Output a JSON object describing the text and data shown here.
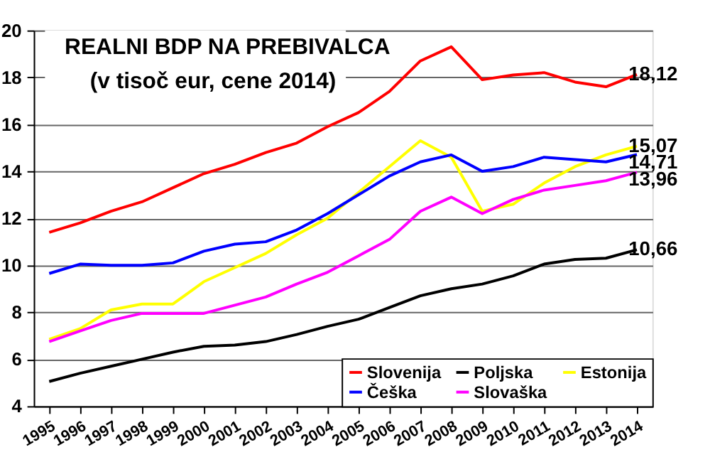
{
  "chart_data": {
    "type": "line",
    "title": "REALNI BDP NA PREBIVALCA",
    "subtitle": "(v tisoč eur, cene 2014)",
    "categories": [
      "1995",
      "1996",
      "1997",
      "1998",
      "1999",
      "2000",
      "2001",
      "2002",
      "2003",
      "2004",
      "2005",
      "2006",
      "2007",
      "2008",
      "2009",
      "2010",
      "2011",
      "2012",
      "2013",
      "2014"
    ],
    "series": [
      {
        "name": "Slovenija",
        "color": "#ff0000",
        "values": [
          11.4,
          11.8,
          12.3,
          12.7,
          13.3,
          13.9,
          14.3,
          14.8,
          15.2,
          15.9,
          16.5,
          17.4,
          18.7,
          19.3,
          17.9,
          18.1,
          18.2,
          17.8,
          17.6,
          18.12
        ],
        "value_labels": [
          null,
          null,
          null,
          null,
          null,
          null,
          null,
          null,
          null,
          null,
          null,
          null,
          null,
          null,
          null,
          null,
          null,
          null,
          null,
          "18,12"
        ]
      },
      {
        "name": "Poljska",
        "color": "#000000",
        "values": [
          5.05,
          5.4,
          5.7,
          6.0,
          6.3,
          6.55,
          6.6,
          6.75,
          7.05,
          7.4,
          7.7,
          8.2,
          8.7,
          9.0,
          9.2,
          9.55,
          10.05,
          10.25,
          10.3,
          10.66
        ],
        "value_labels": [
          null,
          null,
          null,
          null,
          null,
          null,
          null,
          null,
          null,
          null,
          null,
          null,
          null,
          null,
          null,
          null,
          null,
          null,
          null,
          "10,66"
        ]
      },
      {
        "name": "Estonija",
        "color": "#ffff00",
        "values": [
          6.85,
          7.3,
          8.1,
          8.35,
          8.35,
          9.3,
          9.9,
          10.5,
          11.3,
          12.0,
          13.1,
          14.2,
          15.3,
          14.6,
          12.3,
          12.6,
          13.5,
          14.2,
          14.7,
          15.07
        ],
        "value_labels": [
          null,
          null,
          null,
          null,
          null,
          null,
          null,
          null,
          null,
          null,
          null,
          null,
          null,
          null,
          null,
          null,
          null,
          null,
          null,
          "15,07"
        ]
      },
      {
        "name": "Češka",
        "color": "#0000ff",
        "values": [
          9.65,
          10.05,
          10.0,
          10.0,
          10.1,
          10.6,
          10.9,
          11.0,
          11.5,
          12.2,
          13.0,
          13.8,
          14.4,
          14.7,
          14.0,
          14.2,
          14.6,
          14.5,
          14.4,
          14.71
        ],
        "value_labels": [
          null,
          null,
          null,
          null,
          null,
          null,
          null,
          null,
          null,
          null,
          null,
          null,
          null,
          null,
          null,
          null,
          null,
          null,
          null,
          "14,71"
        ]
      },
      {
        "name": "Slovaška",
        "color": "#ff00ff",
        "values": [
          6.75,
          7.2,
          7.65,
          7.95,
          7.95,
          7.95,
          8.3,
          8.65,
          9.2,
          9.7,
          10.4,
          11.1,
          12.3,
          12.9,
          12.2,
          12.8,
          13.2,
          13.4,
          13.6,
          13.96
        ],
        "value_labels": [
          null,
          null,
          null,
          null,
          null,
          null,
          null,
          null,
          null,
          null,
          null,
          null,
          null,
          null,
          null,
          null,
          null,
          null,
          null,
          "13,96"
        ]
      }
    ],
    "ylim": [
      4,
      20
    ],
    "yticks": [
      4,
      6,
      8,
      10,
      12,
      14,
      16,
      18,
      20
    ],
    "grid": "y",
    "legend": "bottom right",
    "marker": "none",
    "line_style": "solid"
  }
}
